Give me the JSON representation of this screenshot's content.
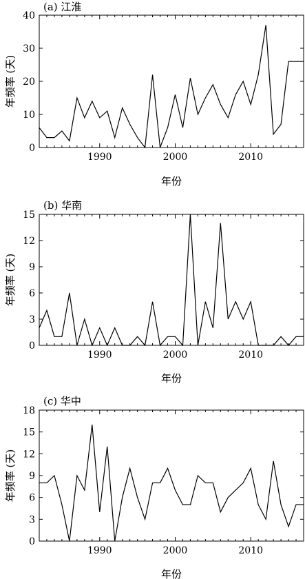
{
  "chart_data": [
    {
      "type": "line",
      "title": "(a) 江淮",
      "xlabel": "年份",
      "ylabel": "年频率 (天)",
      "xlim": [
        1982,
        2017
      ],
      "ylim": [
        0,
        40
      ],
      "xticks": [
        1990,
        2000,
        2010
      ],
      "yticks": [
        0,
        10,
        20,
        30,
        40
      ],
      "grid": false,
      "x": [
        1982,
        1983,
        1984,
        1985,
        1986,
        1987,
        1988,
        1989,
        1990,
        1991,
        1992,
        1993,
        1994,
        1995,
        1996,
        1997,
        1998,
        1999,
        2000,
        2001,
        2002,
        2003,
        2004,
        2005,
        2006,
        2007,
        2008,
        2009,
        2010,
        2011,
        2012,
        2013,
        2014,
        2015,
        2016,
        2017
      ],
      "series": [
        {
          "values": [
            6,
            3,
            3,
            5,
            2,
            15,
            9,
            14,
            9,
            11,
            3,
            12,
            7,
            3,
            0,
            22,
            0,
            6,
            16,
            6,
            21,
            10,
            15,
            19,
            13,
            9,
            16,
            20,
            13,
            22,
            37,
            4,
            7,
            26,
            26,
            26
          ]
        }
      ]
    },
    {
      "type": "line",
      "title": "(b) 华南",
      "xlabel": "年份",
      "ylabel": "年频率 (天)",
      "xlim": [
        1982,
        2017
      ],
      "ylim": [
        0,
        15
      ],
      "xticks": [
        1990,
        2000,
        2010
      ],
      "yticks": [
        0,
        3,
        6,
        9,
        12,
        15
      ],
      "grid": false,
      "x": [
        1982,
        1983,
        1984,
        1985,
        1986,
        1987,
        1988,
        1989,
        1990,
        1991,
        1992,
        1993,
        1994,
        1995,
        1996,
        1997,
        1998,
        1999,
        2000,
        2001,
        2002,
        2003,
        2004,
        2005,
        2006,
        2007,
        2008,
        2009,
        2010,
        2011,
        2012,
        2013,
        2014,
        2015,
        2016,
        2017
      ],
      "series": [
        {
          "values": [
            2,
            4,
            1,
            1,
            6,
            0,
            3,
            0,
            2,
            0,
            2,
            0,
            0,
            1,
            0,
            5,
            0,
            1,
            1,
            0,
            15,
            0,
            5,
            2,
            14,
            3,
            5,
            3,
            5,
            0,
            0,
            0,
            1,
            0,
            1,
            1
          ]
        }
      ]
    },
    {
      "type": "line",
      "title": "(c) 华中",
      "xlabel": "年份",
      "ylabel": "年频率 (天)",
      "xlim": [
        1982,
        2017
      ],
      "ylim": [
        0,
        18
      ],
      "xticks": [
        1990,
        2000,
        2010
      ],
      "yticks": [
        0,
        3,
        6,
        9,
        12,
        15,
        18
      ],
      "grid": false,
      "x": [
        1982,
        1983,
        1984,
        1985,
        1986,
        1987,
        1988,
        1989,
        1990,
        1991,
        1992,
        1993,
        1994,
        1995,
        1996,
        1997,
        1998,
        1999,
        2000,
        2001,
        2002,
        2003,
        2004,
        2005,
        2006,
        2007,
        2008,
        2009,
        2010,
        2011,
        2012,
        2013,
        2014,
        2015,
        2016,
        2017
      ],
      "series": [
        {
          "values": [
            8,
            8,
            9,
            5,
            0,
            9,
            7,
            16,
            4,
            13,
            0,
            6,
            10,
            6,
            3,
            8,
            8,
            10,
            7,
            5,
            5,
            9,
            8,
            8,
            4,
            6,
            7,
            8,
            10,
            5,
            3,
            11,
            5,
            2,
            5,
            5
          ]
        }
      ]
    }
  ]
}
